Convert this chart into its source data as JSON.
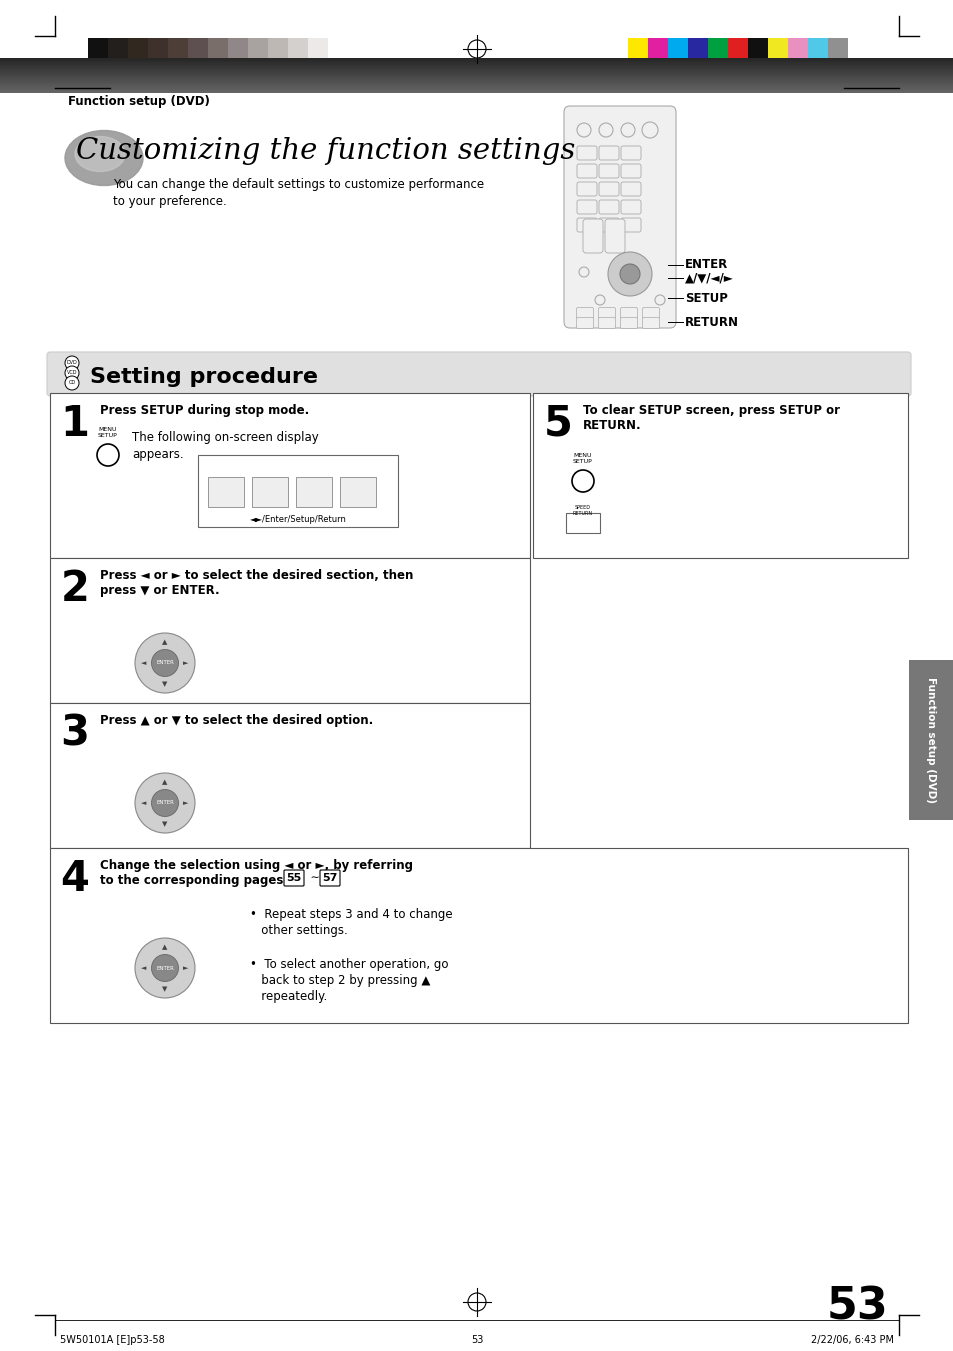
{
  "page_bg": "#ffffff",
  "top_bar_colors_left": [
    "#111111",
    "#231f1c",
    "#312820",
    "#3e302a",
    "#4e3e38",
    "#5e5050",
    "#7a6e6a",
    "#908888",
    "#a8a2a0",
    "#beb8b4",
    "#d4d0ce",
    "#eceae8",
    "#ffffff"
  ],
  "top_bar_colors_right": [
    "#ffe800",
    "#e020a0",
    "#00aaee",
    "#2828a0",
    "#00a040",
    "#e02020",
    "#101010",
    "#f0e820",
    "#e890c0",
    "#50c8e8",
    "#909090"
  ],
  "header_text": "Function setup (DVD)",
  "title_text": "Customizing the function settings",
  "subtitle_line1": "You can change the default settings to customize performance",
  "subtitle_line2": "to your preference.",
  "remote_label_enter": "ENTER",
  "remote_label_arrows": "▲/▼/◄/►",
  "remote_label_setup": "SETUP",
  "remote_label_return": "RETURN",
  "setting_procedure_title": "Setting procedure",
  "step1_title": "Press SETUP during stop mode.",
  "step1_body1": "The following on-screen display",
  "step1_body2": "appears.",
  "step1_caption": "◄►/Enter/Setup/Return",
  "step2_title_1": "Press ◄ or ► to select the desired section, then",
  "step2_title_2": "press ▼ or ENTER.",
  "step3_title": "Press ▲ or ▼ to select the desired option.",
  "step4_title_1": "Change the selection using ◄ or ►, by referring",
  "step4_title_2": "to the corresponding pages",
  "step4_pages": "55",
  "step4_tilde": " ∼ ",
  "step4_pages2": "57",
  "step4_bullet1_1": "Repeat steps 3 and 4 to change",
  "step4_bullet1_2": "other settings.",
  "step4_bullet2_1": "To select another operation, go",
  "step4_bullet2_2": "back to step 2 by pressing ▲",
  "step4_bullet2_3": "repeatedly.",
  "step5_title_1": "To clear SETUP screen, press SETUP or",
  "step5_title_2": "RETURN.",
  "side_label": "Function setup (DVD)",
  "page_number": "53",
  "footer_left": "5W50101A [E]p53-58",
  "footer_center": "53",
  "footer_right": "2/22/06, 6:43 PM"
}
